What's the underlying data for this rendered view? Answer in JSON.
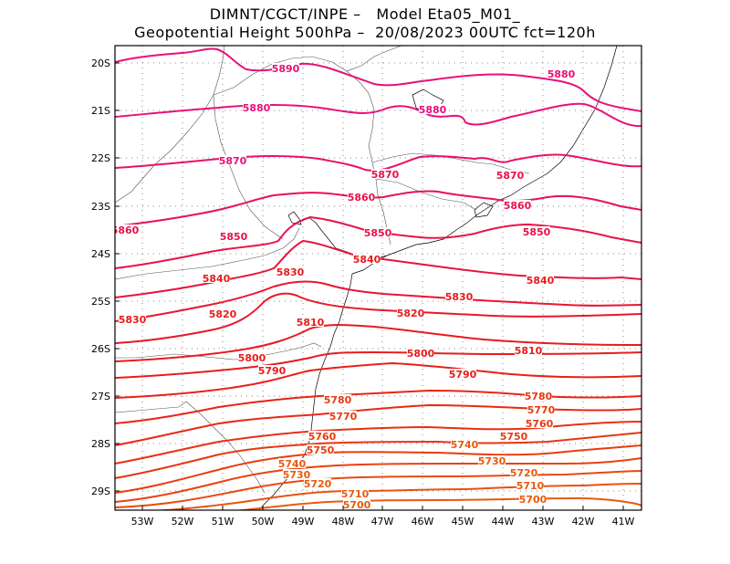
{
  "header": {
    "line1": "DIMNT/CGCT/INPE –   Model Eta05_M01_",
    "line2": "Geopotential Height 500hPa –  20/08/2023 00UTC fct=120h"
  },
  "lat_labels": [
    "20S",
    "21S",
    "22S",
    "23S",
    "24S",
    "25S",
    "26S",
    "27S",
    "28S",
    "29S"
  ],
  "lon_labels": [
    "53W",
    "52W",
    "51W",
    "50W",
    "49W",
    "48W",
    "47W",
    "46W",
    "45W",
    "44W",
    "43W",
    "42W",
    "41W"
  ],
  "contour_labels": [
    "5890",
    "5880",
    "5880",
    "5880",
    "5870",
    "5870",
    "5870",
    "5860",
    "5860",
    "5860",
    "5850",
    "5850",
    "5850",
    "5840",
    "5840",
    "5840",
    "5830",
    "5830",
    "5830",
    "5820",
    "5820",
    "5810",
    "5810",
    "5800",
    "5800",
    "5790",
    "5790",
    "5780",
    "5780",
    "5770",
    "5770",
    "5760",
    "5760",
    "5750",
    "5750",
    "5740",
    "5740",
    "5730",
    "5730",
    "5720",
    "5720",
    "5710",
    "5710",
    "5700",
    "5700"
  ],
  "colors": {
    "magenta": "#e8107a",
    "crimson": "#e81248",
    "red": "#e81c1c",
    "orange_red": "#e83a10",
    "orange": "#e85a10",
    "coast": "#000000",
    "grid": "#8a8a8a"
  }
}
